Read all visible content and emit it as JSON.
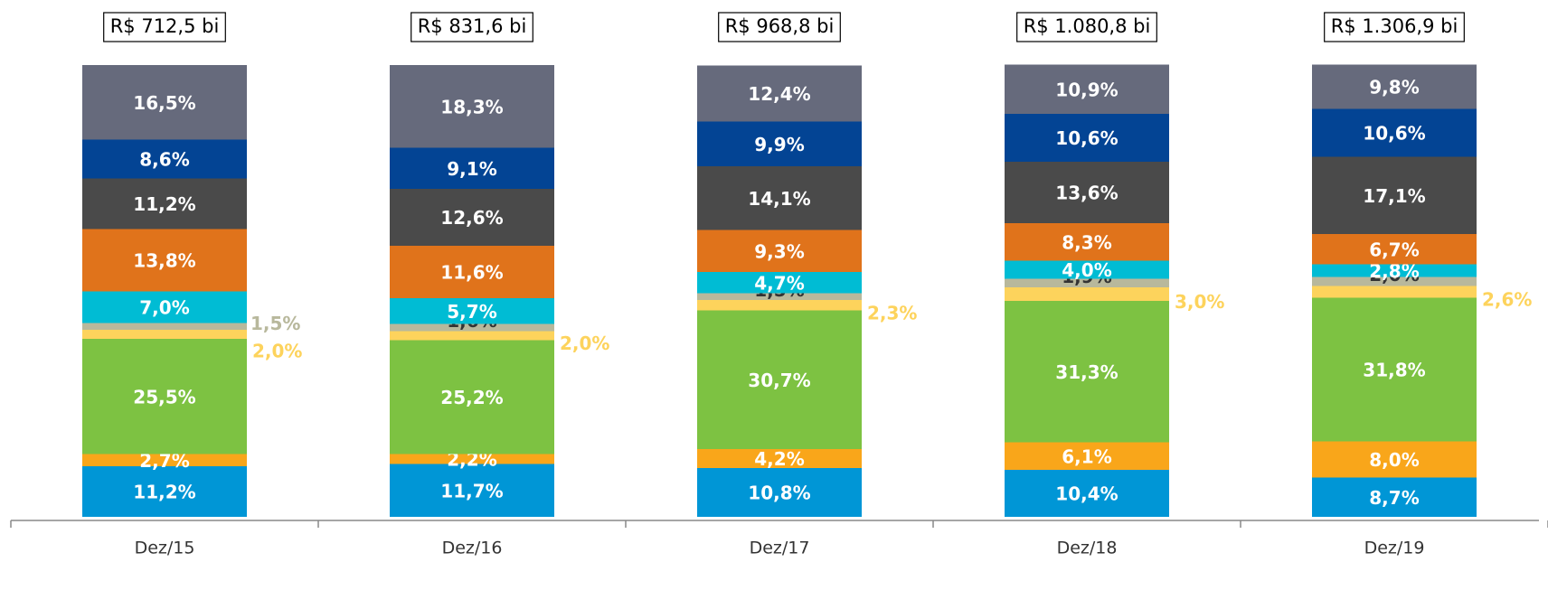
{
  "chart_data": {
    "type": "stacked_bar",
    "categories": [
      "Dez/15",
      "Dez/16",
      "Dez/17",
      "Dez/18",
      "Dez/19"
    ],
    "annotations": [
      "R$ 712,5 bi",
      "R$ 831,6 bi",
      "R$ 968,8 bi",
      "R$ 1.080,8 bi",
      "R$ 1.306,9 bi"
    ],
    "ylim": [
      0,
      100
    ],
    "series": [
      {
        "color": "#0096d6",
        "values": [
          11.2,
          11.7,
          10.8,
          10.4,
          8.7
        ],
        "value_labels": [
          "11,2%",
          "11,7%",
          "10,8%",
          "10,4%",
          "8,7%"
        ]
      },
      {
        "color": "#f9a61a",
        "values": [
          2.7,
          2.2,
          4.2,
          6.1,
          8.0
        ],
        "value_labels": [
          "2,7%",
          "2,2%",
          "4,2%",
          "6,1%",
          "8,0%"
        ]
      },
      {
        "color": "#7dc242",
        "values": [
          25.5,
          25.2,
          30.7,
          31.3,
          31.8
        ],
        "value_labels": [
          "25,5%",
          "25,2%",
          "30,7%",
          "31,3%",
          "31,8%"
        ]
      },
      {
        "color": "#fdd35c",
        "values": [
          2.0,
          2.0,
          2.3,
          3.0,
          2.6
        ],
        "value_labels": [
          "2,0%",
          "2,0%",
          "2,3%",
          "3,0%",
          "2,6%"
        ]
      },
      {
        "color": "#b8b89c",
        "values": [
          1.5,
          1.6,
          1.5,
          1.9,
          2.0
        ],
        "value_labels": [
          "1,5%",
          "1,6%",
          "1,5%",
          "1,9%",
          "2,0%"
        ]
      },
      {
        "color": "#00bcd4",
        "values": [
          7.0,
          5.7,
          4.7,
          4.0,
          2.8
        ],
        "value_labels": [
          "7,0%",
          "5,7%",
          "4,7%",
          "4,0%",
          "2,8%"
        ]
      },
      {
        "color": "#e0731b",
        "values": [
          13.8,
          11.6,
          9.3,
          8.3,
          6.7
        ],
        "value_labels": [
          "13,8%",
          "11,6%",
          "9,3%",
          "8,3%",
          "6,7%"
        ]
      },
      {
        "color": "#4a4a4a",
        "values": [
          11.2,
          12.6,
          14.1,
          13.6,
          17.1
        ],
        "value_labels": [
          "11,2%",
          "12,6%",
          "14,1%",
          "13,6%",
          "17,1%"
        ]
      },
      {
        "color": "#034494",
        "values": [
          8.6,
          9.1,
          9.9,
          10.6,
          10.6
        ],
        "value_labels": [
          "8,6%",
          "9,1%",
          "9,9%",
          "10,6%",
          "10,6%"
        ]
      },
      {
        "color": "#666a7c",
        "values": [
          16.5,
          18.3,
          12.4,
          10.9,
          9.8
        ],
        "value_labels": [
          "16,5%",
          "18,3%",
          "12,4%",
          "10,9%",
          "9,8%"
        ]
      }
    ]
  }
}
